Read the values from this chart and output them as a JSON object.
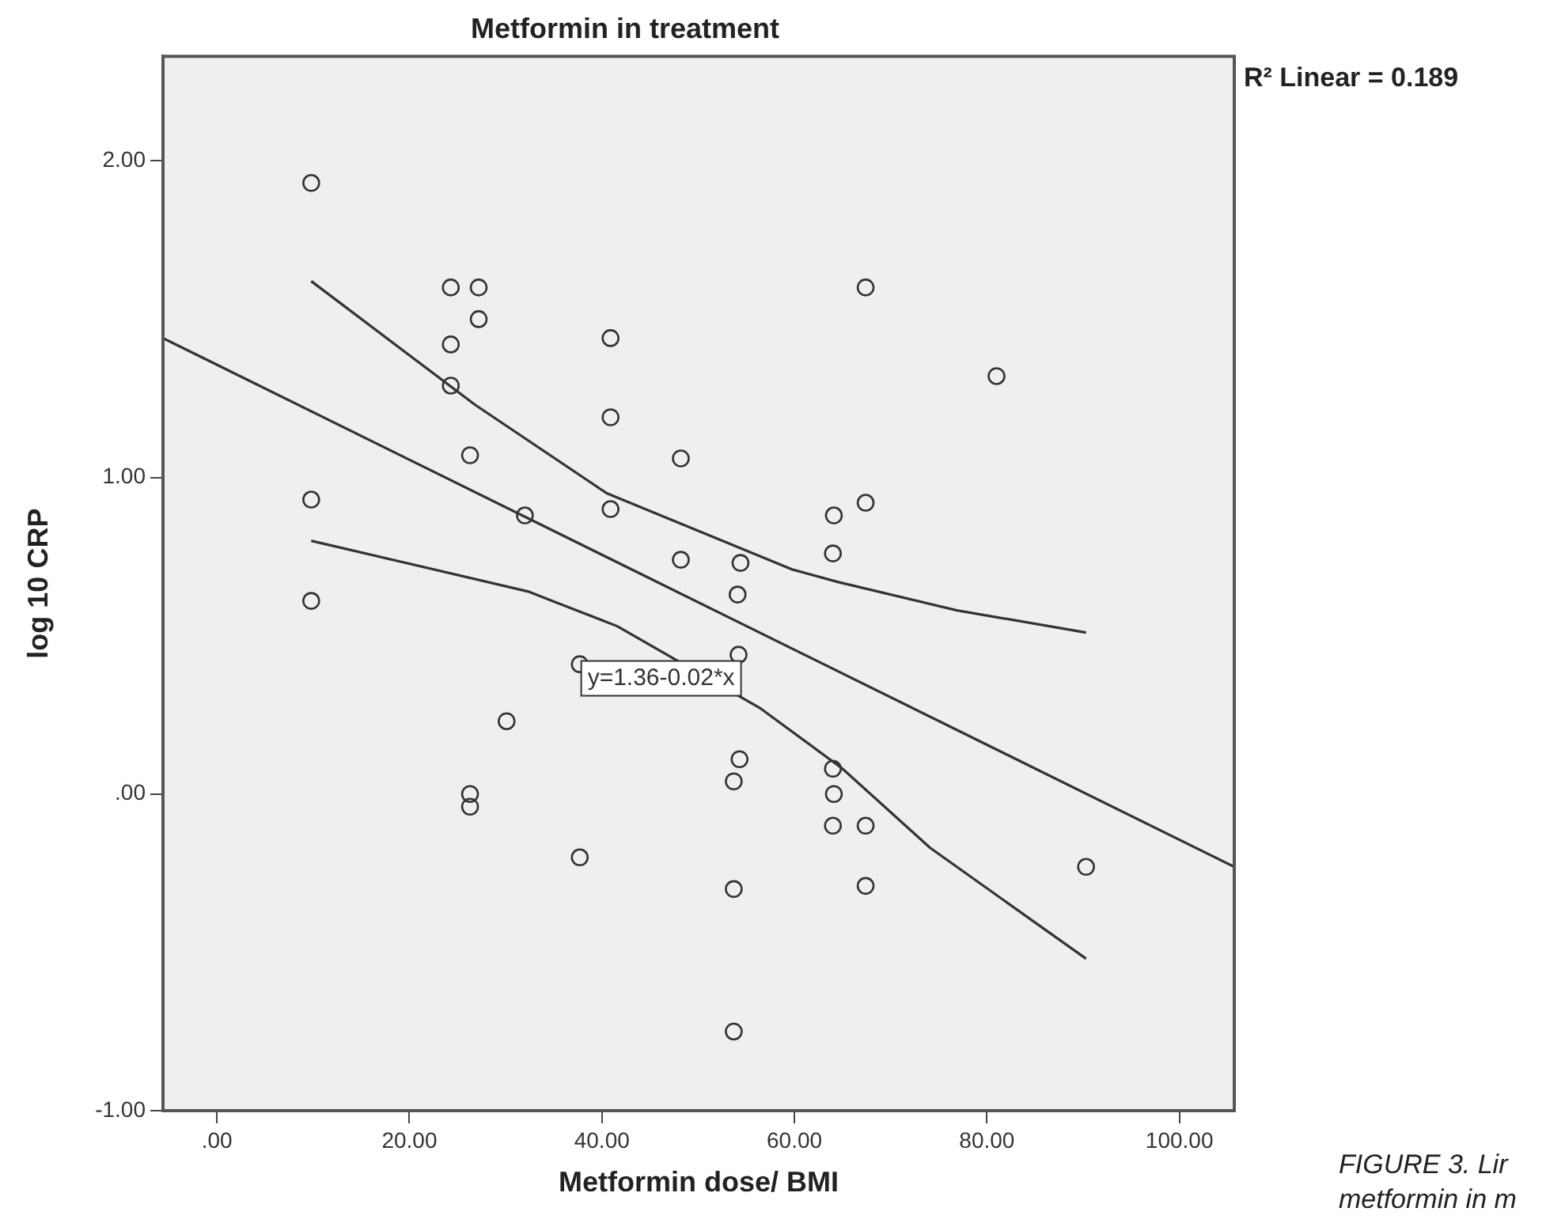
{
  "chart_data": {
    "type": "scatter",
    "title": "Metformin in treatment",
    "xlabel": "Metformin dose/ BMI",
    "ylabel": "log 10 CRP",
    "xlim": [
      -5.6,
      105.7
    ],
    "ylim": [
      -1,
      2.33
    ],
    "xticks": [
      {
        "value": 0,
        "label": ".00"
      },
      {
        "value": 20,
        "label": "20.00"
      },
      {
        "value": 40,
        "label": "40.00"
      },
      {
        "value": 60,
        "label": "60.00"
      },
      {
        "value": 80,
        "label": "80.00"
      },
      {
        "value": 100,
        "label": "100.00"
      }
    ],
    "yticks": [
      {
        "value": -1,
        "label": "-1.00"
      },
      {
        "value": 0,
        "label": ".00"
      },
      {
        "value": 1,
        "label": "1.00"
      },
      {
        "value": 2,
        "label": "2.00"
      }
    ],
    "grid": false,
    "legend": false,
    "marker": "circle",
    "series": [
      {
        "color": "#333333",
        "x": [
          9.8,
          24.3,
          27.2,
          27.2,
          24.3,
          24.3,
          40.9,
          40.9,
          26.3,
          48.2,
          9.8,
          32.0,
          40.9,
          48.2,
          54.4,
          54.1,
          9.8,
          37.7,
          54.2,
          30.1,
          26.3,
          26.3,
          54.3,
          53.7,
          37.7,
          53.7,
          53.7,
          67.4,
          81.0,
          67.4,
          64.1,
          64.0,
          64.0,
          64.1,
          64.0,
          67.4,
          67.4,
          90.3
        ],
        "values": [
          1.93,
          1.6,
          1.6,
          1.5,
          1.42,
          1.29,
          1.44,
          1.19,
          1.07,
          1.06,
          0.93,
          0.88,
          0.9,
          0.74,
          0.73,
          0.63,
          0.61,
          0.41,
          0.44,
          0.23,
          0.0,
          -0.04,
          0.11,
          0.04,
          -0.2,
          -0.3,
          -0.75,
          1.6,
          1.32,
          0.92,
          0.88,
          0.76,
          0.08,
          0.0,
          -0.1,
          -0.1,
          -0.29,
          -0.23
        ]
      },
      {
        "type": "line",
        "color": "#333333",
        "marker": "none",
        "x": [
          -5.6,
          105.7
        ],
        "values": [
          1.44,
          -0.23
        ]
      },
      {
        "type": "line",
        "color": "#333333",
        "marker": "none",
        "x": [
          9.8,
          26.8,
          40.5,
          59.7,
          64.5,
          76.9,
          90.3
        ],
        "values": [
          1.62,
          1.23,
          0.95,
          0.71,
          0.67,
          0.58,
          0.51
        ]
      },
      {
        "type": "line",
        "color": "#333333",
        "marker": "none",
        "x": [
          9.8,
          32.3,
          41.6,
          56.5,
          65.0,
          74.1,
          90.3
        ],
        "values": [
          0.8,
          0.64,
          0.53,
          0.27,
          0.08,
          -0.17,
          -0.52
        ]
      }
    ],
    "annotations": [
      "R² Linear = 0.189",
      "y=1.36-0.02*x",
      "FIGURE 3. Lir",
      "metformin in m"
    ]
  }
}
